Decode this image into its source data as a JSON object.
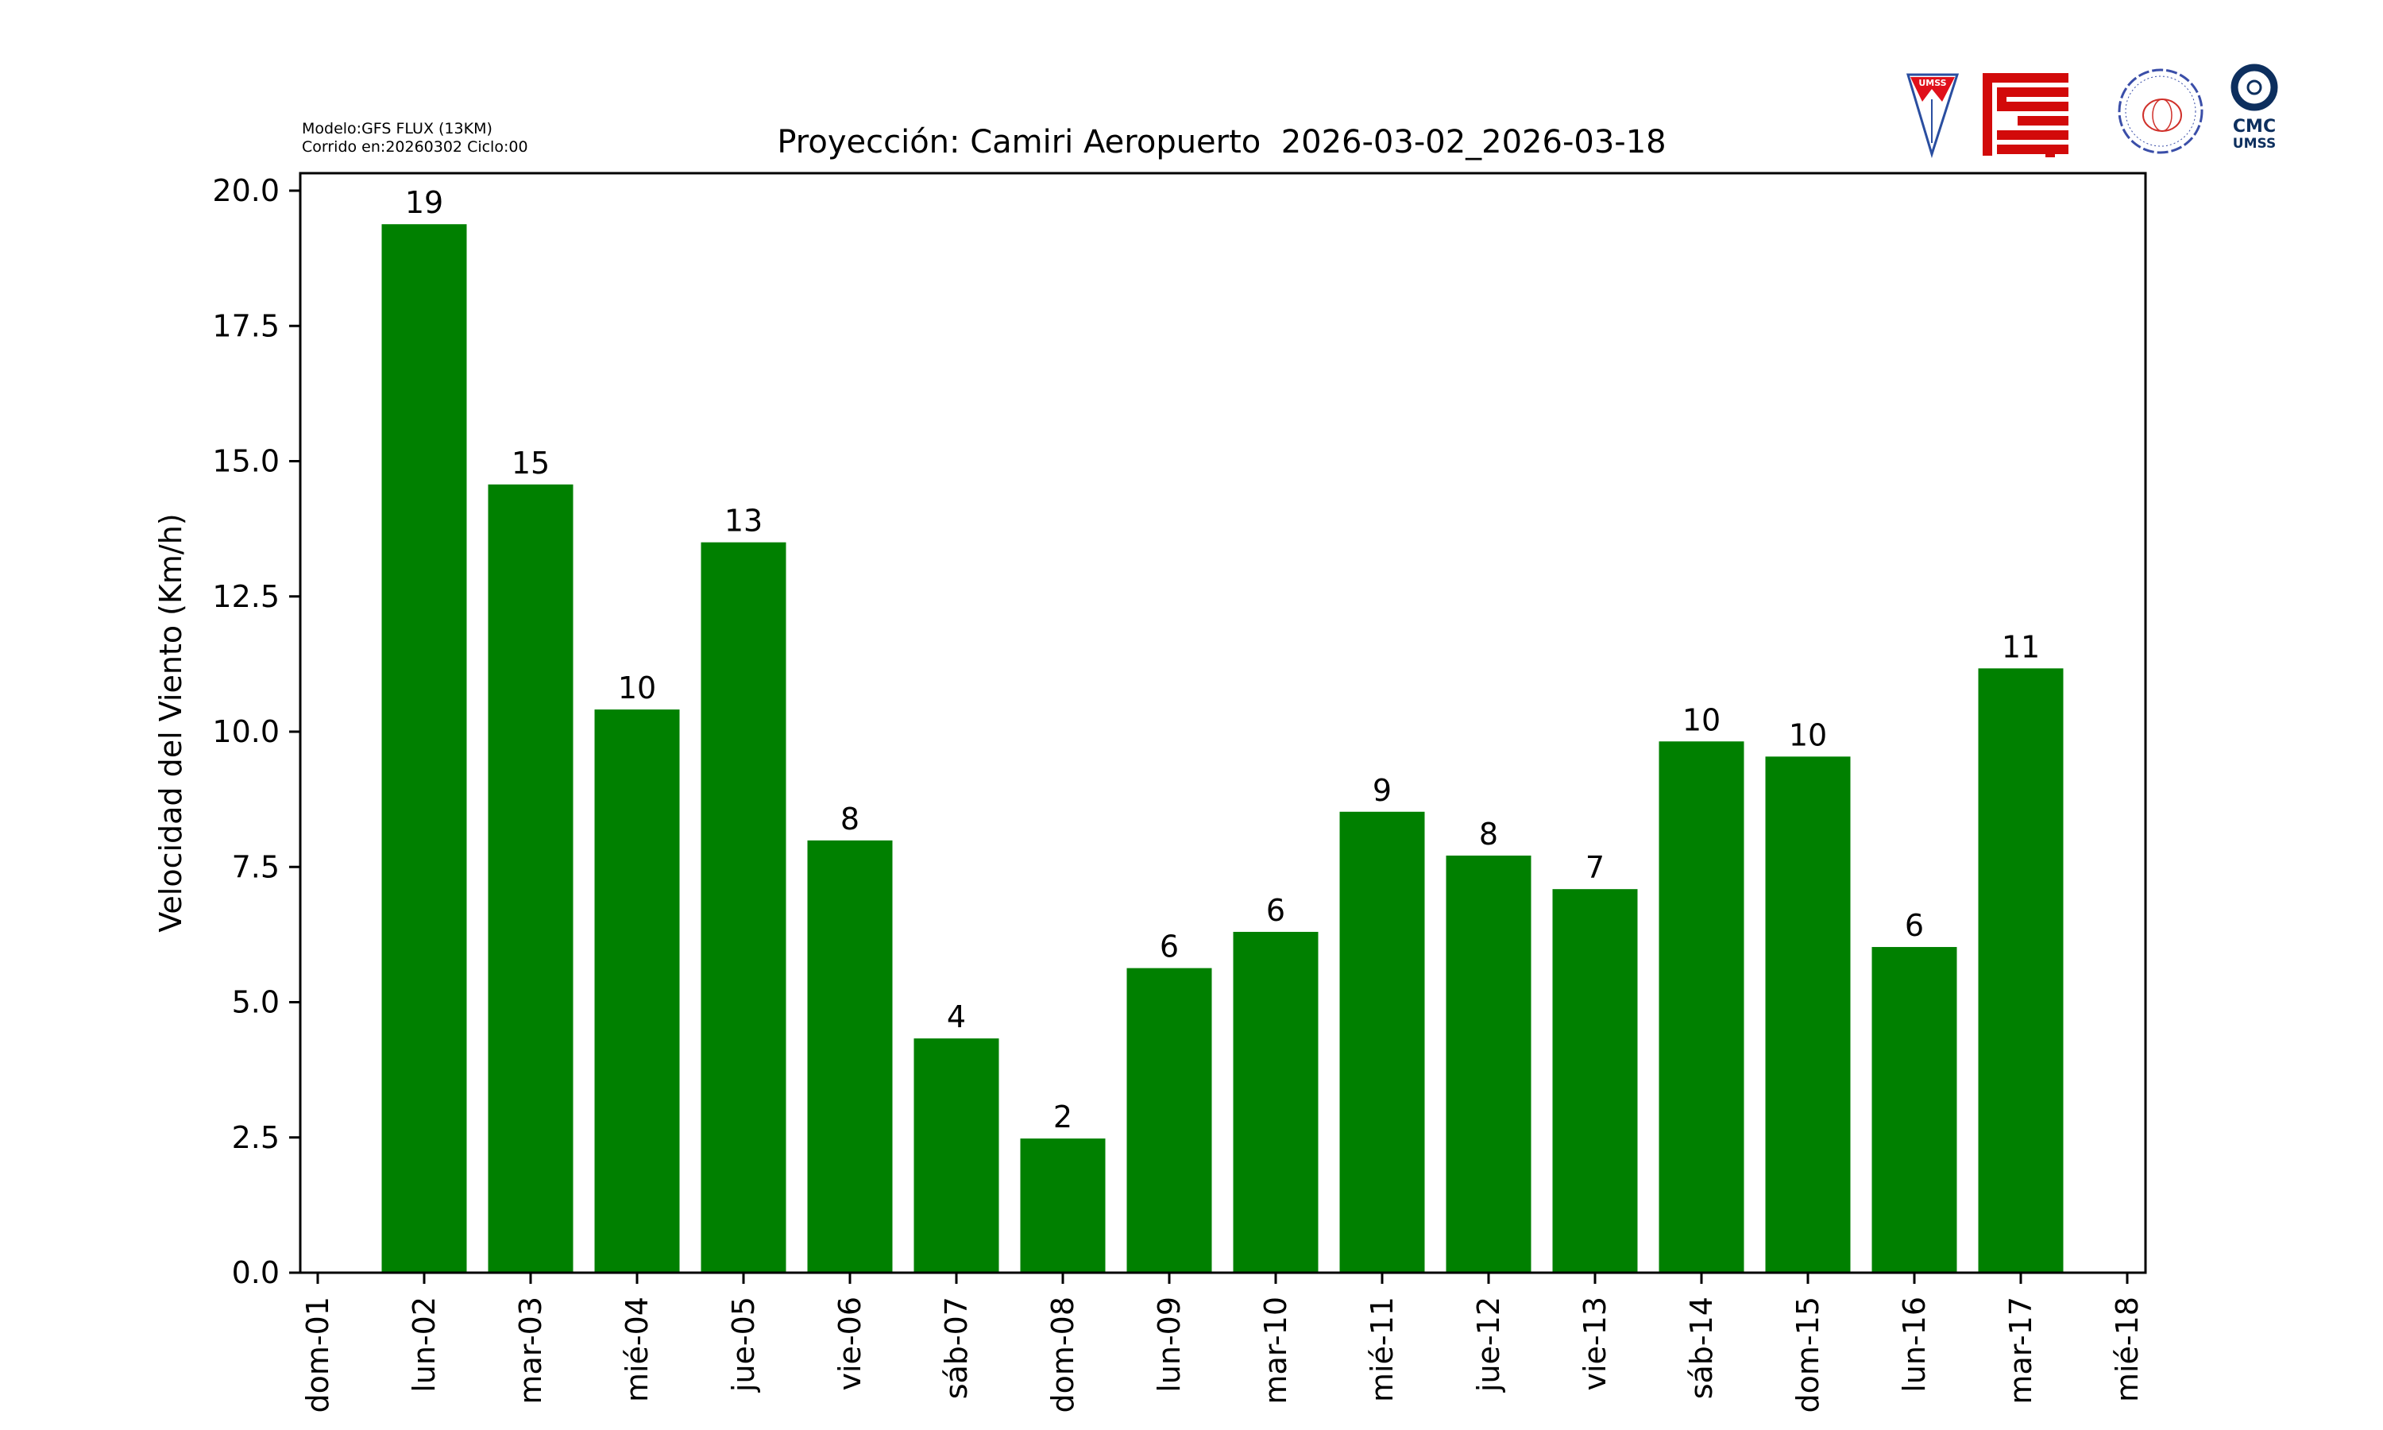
{
  "header": {
    "model_line": "Modelo:GFS FLUX (13KM)",
    "run_line": "Corrido en:20260302 Ciclo:00"
  },
  "logos": [
    {
      "name": "umss-shield-logo",
      "text": "UMSS"
    },
    {
      "name": "fcyt-logo",
      "text": "FCyT"
    },
    {
      "name": "departamento-fisica-logo",
      "text": "DEPARTAMENTO DE FÍSICA FCyT-UMSS"
    },
    {
      "name": "cmc-umss-logo",
      "text": "CMC UMSS",
      "color": "#0d2f5e"
    }
  ],
  "chart_data": {
    "type": "bar",
    "title": "Proyección: Camiri Aeropuerto  2026-03-02_2026-03-18",
    "xlabel": "",
    "ylabel": "Velocidad del Viento (Km/h)",
    "ylim": [
      0,
      20.3
    ],
    "yticks": [
      "0.0",
      "2.5",
      "5.0",
      "7.5",
      "10.0",
      "12.5",
      "15.0",
      "17.5",
      "20.0"
    ],
    "xticks": [
      "dom-01",
      "lun-02",
      "mar-03",
      "mié-04",
      "jue-05",
      "vie-06",
      "sáb-07",
      "dom-08",
      "lun-09",
      "mar-10",
      "mié-11",
      "jue-12",
      "vie-13",
      "sáb-14",
      "dom-15",
      "lun-16",
      "mar-17",
      "mié-18"
    ],
    "categories": [
      "lun-02",
      "mar-03",
      "mié-04",
      "jue-05",
      "vie-06",
      "sáb-07",
      "dom-08",
      "lun-09",
      "mar-10",
      "mié-11",
      "jue-12",
      "vie-13",
      "sáb-14",
      "dom-15",
      "lun-16",
      "mar-17"
    ],
    "values": [
      19.38,
      14.57,
      10.41,
      13.5,
      7.99,
      4.33,
      2.48,
      5.63,
      6.3,
      8.52,
      7.71,
      7.09,
      9.82,
      9.54,
      6.02,
      11.17
    ],
    "data_labels": [
      "19",
      "15",
      "10",
      "13",
      "8",
      "4",
      "2",
      "6",
      "6",
      "9",
      "8",
      "7",
      "10",
      "10",
      "6",
      "11"
    ],
    "bar_color": "#008000",
    "grid": false,
    "legend": "none"
  }
}
